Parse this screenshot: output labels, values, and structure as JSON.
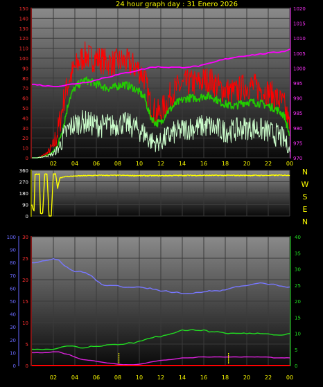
{
  "title": "24 hour graph day : 31 Enero 2026",
  "colors": {
    "background": "#000000",
    "title": "#ffff00",
    "red_axis": "#ff3030",
    "magenta_axis": "#ff33ff",
    "blue_axis": "#6a6aff",
    "green_axis": "#22dd22",
    "yellow_axis": "#ffff00",
    "x_axis": "#ffff00"
  },
  "x_ticks": [
    "02",
    "04",
    "06",
    "08",
    "10",
    "12",
    "14",
    "16",
    "18",
    "20",
    "22",
    "00"
  ],
  "chart_data": [
    {
      "type": "line",
      "title": "24 hour graph day : 31 Enero 2026",
      "x_hours": [
        0,
        0.5,
        1,
        1.5,
        2,
        2.5,
        3,
        3.5,
        4,
        4.5,
        5,
        5.5,
        6,
        6.5,
        7,
        7.5,
        8,
        8.5,
        9,
        9.5,
        10,
        10.5,
        11,
        11.5,
        12,
        12.5,
        13,
        13.5,
        14,
        14.5,
        15,
        15.5,
        16,
        16.5,
        17,
        17.5,
        18,
        18.5,
        19,
        19.5,
        20,
        20.5,
        21,
        21.5,
        22,
        22.5,
        23,
        23.5,
        24
      ],
      "y_left": {
        "min": 0,
        "max": 150,
        "ticks": [
          0,
          10,
          20,
          30,
          40,
          50,
          60,
          70,
          80,
          90,
          100,
          110,
          120,
          130,
          140,
          150
        ]
      },
      "y_right": {
        "min": 970,
        "max": 1020,
        "ticks": [
          970,
          975,
          980,
          985,
          990,
          995,
          1000,
          1005,
          1010,
          1015,
          1020
        ]
      },
      "series": [
        {
          "color": "#ff0000",
          "axis": "left",
          "values": [
            0,
            0,
            2,
            5,
            12,
            30,
            60,
            80,
            90,
            98,
            103,
            100,
            100,
            98,
            96,
            95,
            96,
            97,
            95,
            92,
            88,
            80,
            55,
            45,
            45,
            55,
            65,
            70,
            72,
            75,
            75,
            75,
            78,
            78,
            75,
            70,
            68,
            66,
            66,
            70,
            72,
            72,
            70,
            68,
            66,
            62,
            58,
            52,
            30
          ]
        },
        {
          "color": "#22cc00",
          "axis": "left",
          "values": [
            0,
            0,
            1,
            3,
            6,
            15,
            35,
            60,
            70,
            75,
            78,
            76,
            74,
            72,
            70,
            70,
            72,
            74,
            72,
            70,
            66,
            60,
            42,
            35,
            35,
            45,
            50,
            55,
            58,
            60,
            60,
            60,
            62,
            62,
            60,
            56,
            54,
            52,
            52,
            55,
            56,
            56,
            55,
            54,
            52,
            50,
            47,
            42,
            22
          ]
        },
        {
          "color": "#ccffcc",
          "axis": "left",
          "values": [
            0,
            0,
            1,
            2,
            4,
            10,
            22,
            30,
            34,
            36,
            36,
            34,
            33,
            32,
            33,
            32,
            34,
            35,
            33,
            31,
            28,
            24,
            18,
            15,
            16,
            20,
            24,
            26,
            28,
            30,
            30,
            31,
            32,
            32,
            30,
            28,
            27,
            27,
            28,
            30,
            30,
            30,
            29,
            28,
            26,
            24,
            22,
            18,
            8
          ]
        },
        {
          "color": "#ff00ff",
          "axis": "right",
          "values": [
            994.5,
            994.5,
            994.2,
            994,
            994,
            994,
            994.2,
            994.5,
            994.8,
            995,
            995.3,
            995.6,
            996,
            996.6,
            997,
            997.4,
            997.8,
            998.2,
            998.6,
            999,
            999.4,
            999.8,
            1000.2,
            1000.4,
            1000.4,
            1000.3,
            1000.3,
            1000.2,
            1000.3,
            1000.4,
            1000.5,
            1000.7,
            1001,
            1001.5,
            1002,
            1002.6,
            1003,
            1003.4,
            1003.7,
            1004,
            1004.2,
            1004.4,
            1004.6,
            1004.8,
            1005,
            1005.2,
            1005.4,
            1005.7,
            1006.3
          ]
        }
      ]
    },
    {
      "type": "line",
      "x_hours": [
        0,
        0.1,
        0.2,
        0.3,
        0.4,
        0.5,
        0.6,
        0.7,
        0.8,
        1,
        1.2,
        1.4,
        1.6,
        1.8,
        2,
        2.2,
        2.4,
        2.6,
        3,
        4,
        6,
        8,
        10,
        12,
        14,
        16,
        18,
        20,
        22,
        24
      ],
      "y": {
        "min": 0,
        "max": 360,
        "ticks": [
          0,
          90,
          180,
          270,
          360
        ]
      },
      "direction_labels": [
        "N",
        "W",
        "S",
        "E",
        "N"
      ],
      "series": [
        {
          "color": "#ffff00",
          "values": [
            90,
            60,
            40,
            330,
            330,
            330,
            330,
            330,
            20,
            20,
            330,
            330,
            0,
            0,
            330,
            330,
            220,
            300,
            310,
            315,
            320,
            320,
            318,
            318,
            320,
            320,
            320,
            320,
            320,
            322
          ]
        }
      ]
    },
    {
      "type": "line",
      "x_hours": [
        0,
        0.5,
        1,
        1.5,
        2,
        2.5,
        3,
        3.5,
        4,
        4.5,
        5,
        5.5,
        6,
        6.5,
        7,
        7.5,
        8,
        8.5,
        9,
        9.5,
        10,
        10.5,
        11,
        11.5,
        12,
        12.5,
        13,
        13.5,
        14,
        14.5,
        15,
        15.5,
        16,
        16.5,
        17,
        17.5,
        18,
        18.5,
        19,
        19.5,
        20,
        20.5,
        21,
        21.5,
        22,
        22.5,
        23,
        23.5,
        24
      ],
      "y_blue": {
        "min": 0,
        "max": 100,
        "ticks": [
          0,
          10,
          20,
          30,
          40,
          50,
          60,
          70,
          80,
          90,
          100
        ]
      },
      "y_red": {
        "min": 0,
        "max": 30,
        "ticks": [
          0,
          5,
          10,
          15,
          20,
          25,
          30
        ]
      },
      "y_green": {
        "min": 0,
        "max": 40,
        "ticks": [
          0,
          5,
          10,
          15,
          20,
          25,
          30,
          35,
          40
        ]
      },
      "series": [
        {
          "color": "#7777ff",
          "axis": "blue",
          "values": [
            80,
            80,
            81,
            82,
            83,
            82,
            78,
            75,
            73,
            73,
            72,
            70,
            66,
            63,
            62,
            62,
            62,
            61,
            61,
            61,
            61,
            60,
            60,
            59,
            58,
            58,
            57,
            57,
            56,
            56,
            56,
            57,
            57,
            58,
            58,
            58,
            59,
            60,
            61,
            62,
            62,
            63,
            64,
            64,
            63,
            63,
            62,
            61,
            61
          ]
        },
        {
          "color": "#22dd22",
          "axis": "green",
          "values": [
            5,
            5,
            5,
            5,
            5,
            5.5,
            6,
            6,
            6,
            5.5,
            5.5,
            6,
            6,
            6,
            6.5,
            6.5,
            6.5,
            6.5,
            7,
            7,
            7.5,
            8,
            8.5,
            9,
            9,
            9.5,
            10,
            10.5,
            11,
            11,
            11,
            11,
            11,
            10.5,
            10.5,
            10.5,
            10,
            10,
            10,
            10,
            10,
            10,
            10,
            10,
            10,
            9.5,
            9.5,
            9.5,
            10
          ]
        },
        {
          "color": "#dd22dd",
          "axis": "red",
          "values": [
            3,
            3,
            3,
            3,
            3.2,
            3.2,
            2.8,
            2.5,
            2,
            1.5,
            1.3,
            1.2,
            1,
            0.8,
            0.6,
            0.5,
            0.3,
            0.2,
            0.2,
            0.2,
            0.3,
            0.5,
            0.8,
            1,
            1.2,
            1.3,
            1.4,
            1.6,
            1.8,
            1.8,
            1.8,
            2,
            2,
            2,
            2,
            2,
            2,
            2,
            2,
            2,
            2,
            2,
            2,
            2,
            2,
            1.8,
            1.8,
            1.8,
            1.8
          ]
        },
        {
          "color": "#ff0000",
          "axis": "red",
          "values": [
            0,
            0,
            0,
            0,
            0,
            0,
            0,
            0,
            0,
            0,
            0,
            0,
            0,
            0,
            0,
            0,
            0,
            0,
            0,
            0,
            0,
            0,
            0,
            0,
            0,
            0,
            0,
            0,
            0,
            0,
            0,
            0,
            0,
            0,
            0,
            0,
            0,
            0,
            0,
            0,
            0,
            0,
            0,
            0,
            0,
            0,
            0,
            0,
            0
          ]
        }
      ],
      "markers": [
        {
          "color": "#ffff00",
          "x_hour": 8.1
        },
        {
          "color": "#ffff00",
          "x_hour": 18.3
        }
      ]
    }
  ]
}
